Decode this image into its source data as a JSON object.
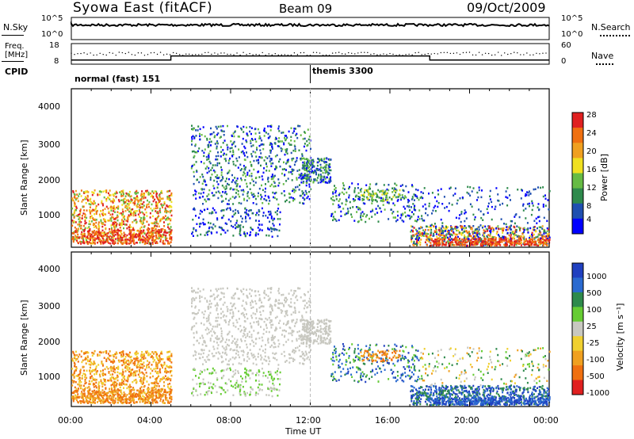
{
  "header": {
    "station": "Syowa East (fitACF)",
    "beam": "Beam 09",
    "date": "09/Oct/2009"
  },
  "noise_panel": {
    "left_label": "N.Sky",
    "right_label": "N.Search",
    "left_ticks": [
      "10^5",
      "10^0"
    ],
    "right_ticks": [
      "10^5",
      "10^0"
    ]
  },
  "freq_panel": {
    "left_label_line1": "Freq.",
    "left_label_line2": "[MHz]",
    "right_label": "Nave",
    "left_ticks": [
      "18",
      "8"
    ],
    "right_ticks": [
      "60",
      "0"
    ]
  },
  "cpid_panel": {
    "label": "CPID",
    "mode1": "normal (fast) 151",
    "mode2": "themis 3300"
  },
  "power_panel": {
    "ylabel": "Slant Range [km]",
    "yticks": [
      "4000",
      "3000",
      "2000",
      "1000"
    ],
    "colorbar_label": "Power [dB]",
    "colorbar_ticks": [
      "28",
      "24",
      "20",
      "16",
      "12",
      "8",
      "4"
    ],
    "colors": [
      "#0000ff",
      "#1f4fb0",
      "#2e8a4c",
      "#66bb44",
      "#f0e020",
      "#f0a020",
      "#f07010",
      "#e02020"
    ]
  },
  "velocity_panel": {
    "ylabel": "Slant Range [km]",
    "yticks": [
      "4000",
      "3000",
      "2000",
      "1000"
    ],
    "colorbar_label": "Velocity [m s⁻¹]",
    "colorbar_ticks": [
      "1000",
      "500",
      "100",
      "25",
      "-25",
      "-100",
      "-500",
      "-1000"
    ],
    "colors": [
      "#2040c0",
      "#2a6ad0",
      "#2e8a4c",
      "#66cc33",
      "#c8c8c0",
      "#f0d030",
      "#f0a020",
      "#f07010",
      "#e02020"
    ]
  },
  "xaxis": {
    "label": "Time UT",
    "ticks": [
      "00:00",
      "04:00",
      "08:00",
      "12:00",
      "16:00",
      "20:00",
      "00:00"
    ]
  },
  "chart_data": {
    "type": "heatmap",
    "title": "Syowa East (fitACF) Beam 09 09/Oct/2009",
    "xlabel": "Time UT",
    "ylabel": "Slant Range [km]",
    "xlim": [
      0,
      24
    ],
    "ylim": [
      180,
      4600
    ],
    "series": [
      {
        "name": "Power [dB]",
        "clim": [
          0,
          32
        ]
      },
      {
        "name": "Velocity [m s⁻¹]",
        "clim": [
          -1000,
          1000
        ]
      }
    ],
    "freq_steps": [
      {
        "start_hour": 0,
        "end_hour": 5,
        "freq_mhz": 10
      },
      {
        "start_hour": 5,
        "end_hour": 18,
        "freq_mhz": 12
      },
      {
        "start_hour": 18,
        "end_hour": 24,
        "freq_mhz": 10
      }
    ],
    "cpid_change_hour": 12
  }
}
